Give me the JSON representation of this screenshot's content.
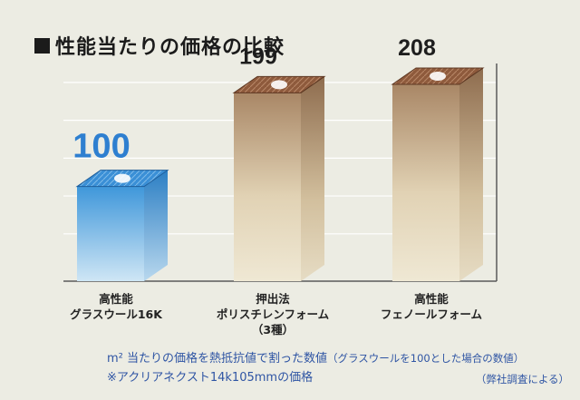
{
  "chart_data": {
    "type": "bar",
    "title": "性能当たりの価格の比較",
    "categories": [
      [
        "高性能",
        "グラスウール16K"
      ],
      [
        "押出法",
        "ポリスチレンフォーム",
        "（3種）"
      ],
      [
        "高性能",
        "フェノールフォーム"
      ]
    ],
    "values": [
      100,
      199,
      208
    ],
    "value_labels": [
      "100",
      "199",
      "208"
    ],
    "ylim": [
      0,
      230
    ],
    "grid": true,
    "bar_colors": [
      "#5aa6dc",
      "#b79877",
      "#b79877"
    ],
    "value_label_colors": [
      "#2e7fd0",
      "#1e1e1e",
      "#1e1e1e"
    ]
  },
  "footnotes": {
    "line1_main": "m² 当たりの価格を熱抵抗値で割った数値",
    "line1_sub": "（グラスウールを100とした場合の数値）",
    "line2": "※アクリアネクスト14k105mmの価格",
    "survey": "（弊社調査による）"
  }
}
